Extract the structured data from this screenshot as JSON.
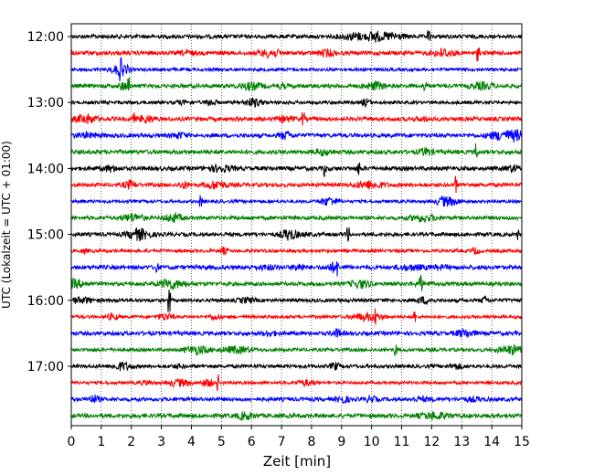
{
  "chart_data": {
    "type": "line",
    "title": "",
    "xlabel": "Zeit  [min]",
    "ylabel": "UTC (Lokalzeit = UTC + 01:00)",
    "xlim": [
      0,
      15
    ],
    "x_ticks": [
      0,
      1,
      2,
      3,
      4,
      5,
      6,
      7,
      8,
      9,
      10,
      11,
      12,
      13,
      14,
      15
    ],
    "x_tick_labels": [
      "0",
      "1",
      "2",
      "3",
      "4",
      "5",
      "6",
      "7",
      "8",
      "9",
      "10",
      "11",
      "12",
      "13",
      "14",
      "15"
    ],
    "y_tick_labels": [
      "12:00",
      "13:00",
      "14:00",
      "15:00",
      "16:00",
      "17:00"
    ],
    "grid": "vertical dotted",
    "colors": [
      "#000000",
      "#ff0000",
      "#0000ff",
      "#008000"
    ],
    "traces": [
      {
        "start": "12:00",
        "color": "#000000"
      },
      {
        "start": "12:15",
        "color": "#ff0000"
      },
      {
        "start": "12:30",
        "color": "#0000ff"
      },
      {
        "start": "12:45",
        "color": "#008000"
      },
      {
        "start": "13:00",
        "color": "#000000"
      },
      {
        "start": "13:15",
        "color": "#ff0000"
      },
      {
        "start": "13:30",
        "color": "#0000ff"
      },
      {
        "start": "13:45",
        "color": "#008000"
      },
      {
        "start": "14:00",
        "color": "#000000"
      },
      {
        "start": "14:15",
        "color": "#ff0000"
      },
      {
        "start": "14:30",
        "color": "#0000ff"
      },
      {
        "start": "14:45",
        "color": "#008000"
      },
      {
        "start": "15:00",
        "color": "#000000"
      },
      {
        "start": "15:15",
        "color": "#ff0000"
      },
      {
        "start": "15:30",
        "color": "#0000ff"
      },
      {
        "start": "15:45",
        "color": "#008000"
      },
      {
        "start": "16:00",
        "color": "#000000"
      },
      {
        "start": "16:15",
        "color": "#ff0000"
      },
      {
        "start": "16:30",
        "color": "#0000ff"
      },
      {
        "start": "16:45",
        "color": "#008000"
      },
      {
        "start": "17:00",
        "color": "#000000"
      },
      {
        "start": "17:15",
        "color": "#ff0000"
      },
      {
        "start": "17:30",
        "color": "#0000ff"
      },
      {
        "start": "17:45",
        "color": "#008000"
      }
    ]
  }
}
